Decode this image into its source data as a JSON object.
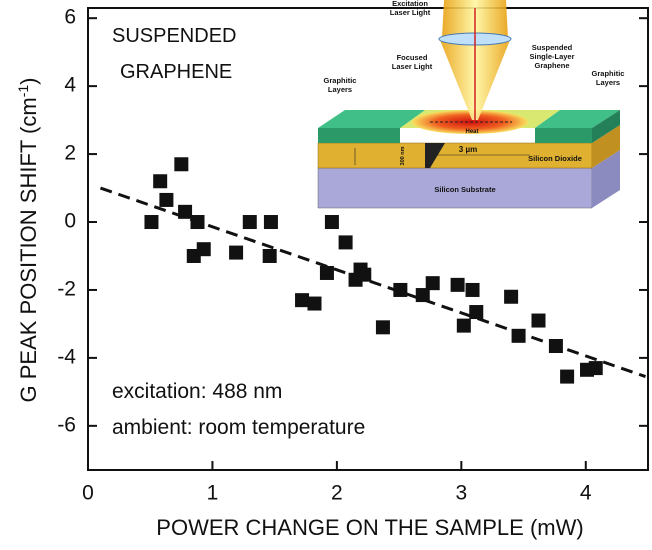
{
  "chart_data": {
    "type": "scatter",
    "annotations": [
      "SUSPENDED",
      "GRAPHENE",
      "excitation: 488 nm",
      "ambient: room temperature"
    ],
    "x_label": "POWER CHANGE ON THE SAMPLE  (mW)",
    "y_label": {
      "text": "G PEAK POSITION SHIFT (cm",
      "superscript": "-1",
      "end": ")"
    },
    "xlim": [
      0,
      4.5
    ],
    "ylim": [
      -7.3,
      6.3
    ],
    "xticks": [
      0,
      1,
      2,
      3,
      4
    ],
    "yticks": [
      -6,
      -4,
      -2,
      0,
      2,
      4,
      6
    ],
    "color": "#111111",
    "x": [
      0.51,
      0.58,
      0.63,
      0.75,
      0.78,
      0.88,
      0.85,
      0.93,
      1.19,
      1.3,
      1.46,
      1.47,
      1.72,
      1.82,
      1.92,
      1.96,
      2.07,
      2.15,
      2.19,
      2.22,
      2.37,
      2.51,
      2.69,
      2.77,
      2.97,
      3.02,
      3.09,
      3.12,
      3.4,
      3.46,
      3.62,
      3.76,
      3.85,
      4.01,
      4.08
    ],
    "values": [
      0.0,
      1.2,
      0.65,
      1.7,
      0.3,
      0.0,
      -1.0,
      -0.8,
      -0.9,
      0.0,
      -1.0,
      0.0,
      -2.3,
      -2.4,
      -1.5,
      0.0,
      -0.6,
      -1.7,
      -1.4,
      -1.55,
      -3.1,
      -2.0,
      -2.15,
      -1.8,
      -1.85,
      -3.05,
      -2.0,
      -2.65,
      -2.2,
      -3.35,
      -2.9,
      -3.65,
      -4.55,
      -4.35,
      -4.3
    ],
    "trend_line": {
      "x": [
        0.1,
        4.48
      ],
      "y": [
        1.0,
        -4.55
      ]
    }
  },
  "inset": {
    "excitation_laser": [
      "Excitation",
      "Laser Light"
    ],
    "focused_laser": [
      "Focused",
      "Laser Light"
    ],
    "suspended": [
      "Suspended",
      "Single-Layer",
      "Graphene"
    ],
    "graphitic_left": [
      "Graphitic",
      "Layers"
    ],
    "graphitic_right": [
      "Graphitic",
      "Layers"
    ],
    "heat": "Heat",
    "thickness": "300 nm",
    "gap": "3 µm",
    "oxide": "Silicon Dioxide",
    "substrate": "Silicon  Substrate"
  }
}
